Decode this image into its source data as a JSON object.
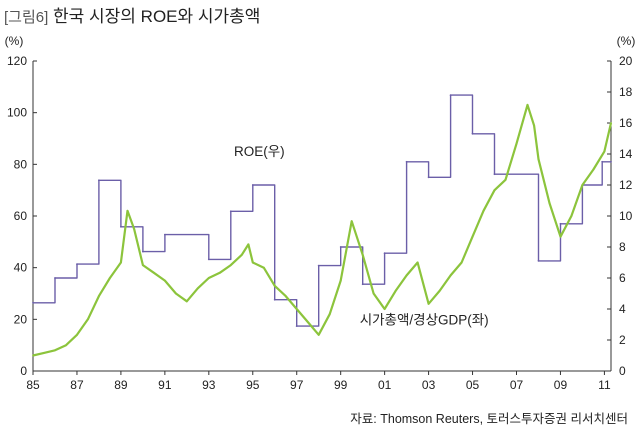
{
  "figure_label": "[그림6]",
  "title": "한국 시장의 ROE와 시가총액",
  "source": "자료: Thomson Reuters, 토러스투자증권 리서치센터",
  "colors": {
    "roe": "#6b5fa8",
    "mcap": "#8cc43c",
    "axis": "#333333"
  },
  "chart_data": {
    "type": "line",
    "title": "한국 시장의 ROE와 시가총액",
    "left_unit": "(%)",
    "right_unit": "(%)",
    "x_ticks": [
      "85",
      "87",
      "89",
      "91",
      "93",
      "95",
      "97",
      "99",
      "01",
      "03",
      "05",
      "07",
      "09",
      "11"
    ],
    "x_range": [
      1985,
      2011.3
    ],
    "ylim_left": [
      0,
      120
    ],
    "ylim_right": [
      0,
      20
    ],
    "y_ticks_left": [
      "0",
      "20",
      "40",
      "60",
      "80",
      "100",
      "120"
    ],
    "y_ticks_right": [
      "0",
      "2",
      "4",
      "6",
      "8",
      "10",
      "12",
      "14",
      "16",
      "18",
      "20"
    ],
    "grid": false,
    "series": [
      {
        "name": "ROE(우)",
        "axis": "right",
        "step": true,
        "color": "#6b5fa8",
        "x": [
          1985,
          1986,
          1987,
          1988,
          1989,
          1990,
          1991,
          1993,
          1994,
          1995,
          1996,
          1997,
          1998,
          1999,
          2000,
          2001,
          2002,
          2003,
          2004,
          2005,
          2006,
          2008,
          2009,
          2010,
          2010.9,
          2011.3
        ],
        "y": [
          4.4,
          6.0,
          6.9,
          12.3,
          9.3,
          7.7,
          8.8,
          7.2,
          10.3,
          12.0,
          4.6,
          2.9,
          6.8,
          8.0,
          5.6,
          7.6,
          13.5,
          12.5,
          17.8,
          15.3,
          12.7,
          7.1,
          9.5,
          12.0,
          13.5,
          13.5
        ]
      },
      {
        "name": "시가총액/경상GDP(좌)",
        "axis": "left",
        "step": false,
        "color": "#8cc43c",
        "x": [
          1985,
          1985.5,
          1986,
          1986.5,
          1987,
          1987.5,
          1988,
          1988.5,
          1989,
          1989.3,
          1989.6,
          1990,
          1990.5,
          1991,
          1991.5,
          1992,
          1992.5,
          1993,
          1993.5,
          1994,
          1994.5,
          1994.8,
          1995,
          1995.5,
          1996,
          1996.5,
          1997,
          1997.5,
          1998,
          1998.5,
          1999,
          1999.5,
          2000,
          2000.5,
          2001,
          2001.5,
          2002,
          2002.5,
          2003,
          2003.5,
          2004,
          2004.5,
          2005,
          2005.5,
          2006,
          2006.5,
          2007,
          2007.5,
          2007.8,
          2008,
          2008.5,
          2009,
          2009.5,
          2010,
          2010.5,
          2011,
          2011.3
        ],
        "y": [
          6,
          7,
          8,
          10,
          14,
          20,
          29,
          36,
          42,
          62,
          55,
          41,
          38,
          35,
          30,
          27,
          32,
          36,
          38,
          41,
          45,
          49,
          42,
          40,
          33,
          29,
          24,
          19,
          14,
          22,
          35,
          58,
          45,
          30,
          24,
          31,
          37,
          42,
          26,
          31,
          37,
          42,
          52,
          62,
          70,
          74,
          88,
          103,
          95,
          82,
          65,
          52,
          60,
          72,
          78,
          85,
          96
        ]
      }
    ],
    "annotations": [
      {
        "text": "ROE(우)",
        "series": "ROE(우)"
      },
      {
        "text": "시가총액/경상GDP(좌)",
        "series": "시가총액/경상GDP(좌)"
      }
    ]
  }
}
